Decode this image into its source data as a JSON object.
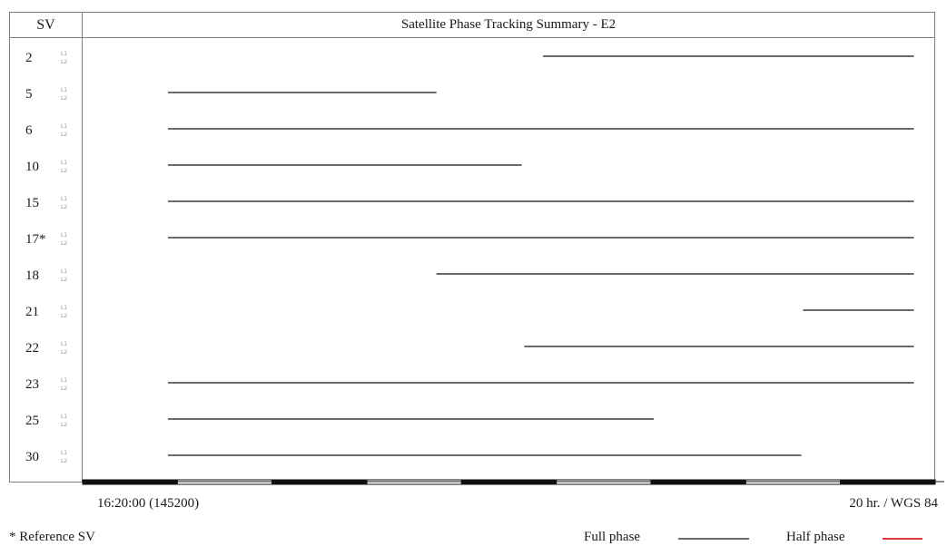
{
  "chart_data": {
    "type": "timeline",
    "title": "Satellite Phase Tracking Summary - E2",
    "sv_header": "SV",
    "x_range": [
      0,
      1
    ],
    "series": [
      {
        "sv": "2",
        "start": 0.54,
        "end": 0.975
      },
      {
        "sv": "5",
        "start": 0.1,
        "end": 0.415
      },
      {
        "sv": "6",
        "start": 0.1,
        "end": 0.975
      },
      {
        "sv": "10",
        "start": 0.1,
        "end": 0.515
      },
      {
        "sv": "15",
        "start": 0.1,
        "end": 0.975
      },
      {
        "sv": "17*",
        "start": 0.1,
        "end": 0.975
      },
      {
        "sv": "18",
        "start": 0.415,
        "end": 0.975
      },
      {
        "sv": "21",
        "start": 0.845,
        "end": 0.975
      },
      {
        "sv": "22",
        "start": 0.518,
        "end": 0.975
      },
      {
        "sv": "23",
        "start": 0.1,
        "end": 0.975
      },
      {
        "sv": "25",
        "start": 0.1,
        "end": 0.67
      },
      {
        "sv": "30",
        "start": 0.1,
        "end": 0.843
      }
    ],
    "channel_labels": [
      "L1",
      "L2"
    ],
    "phase": "full",
    "start_time_label": "16:20:00 (145200)",
    "end_time_label": "20 hr. / WGS 84",
    "footnote": "* Reference SV",
    "legend": [
      {
        "label": "Full phase",
        "color": "#6a6a6a"
      },
      {
        "label": "Half phase",
        "color": "#e03a3a"
      }
    ]
  }
}
